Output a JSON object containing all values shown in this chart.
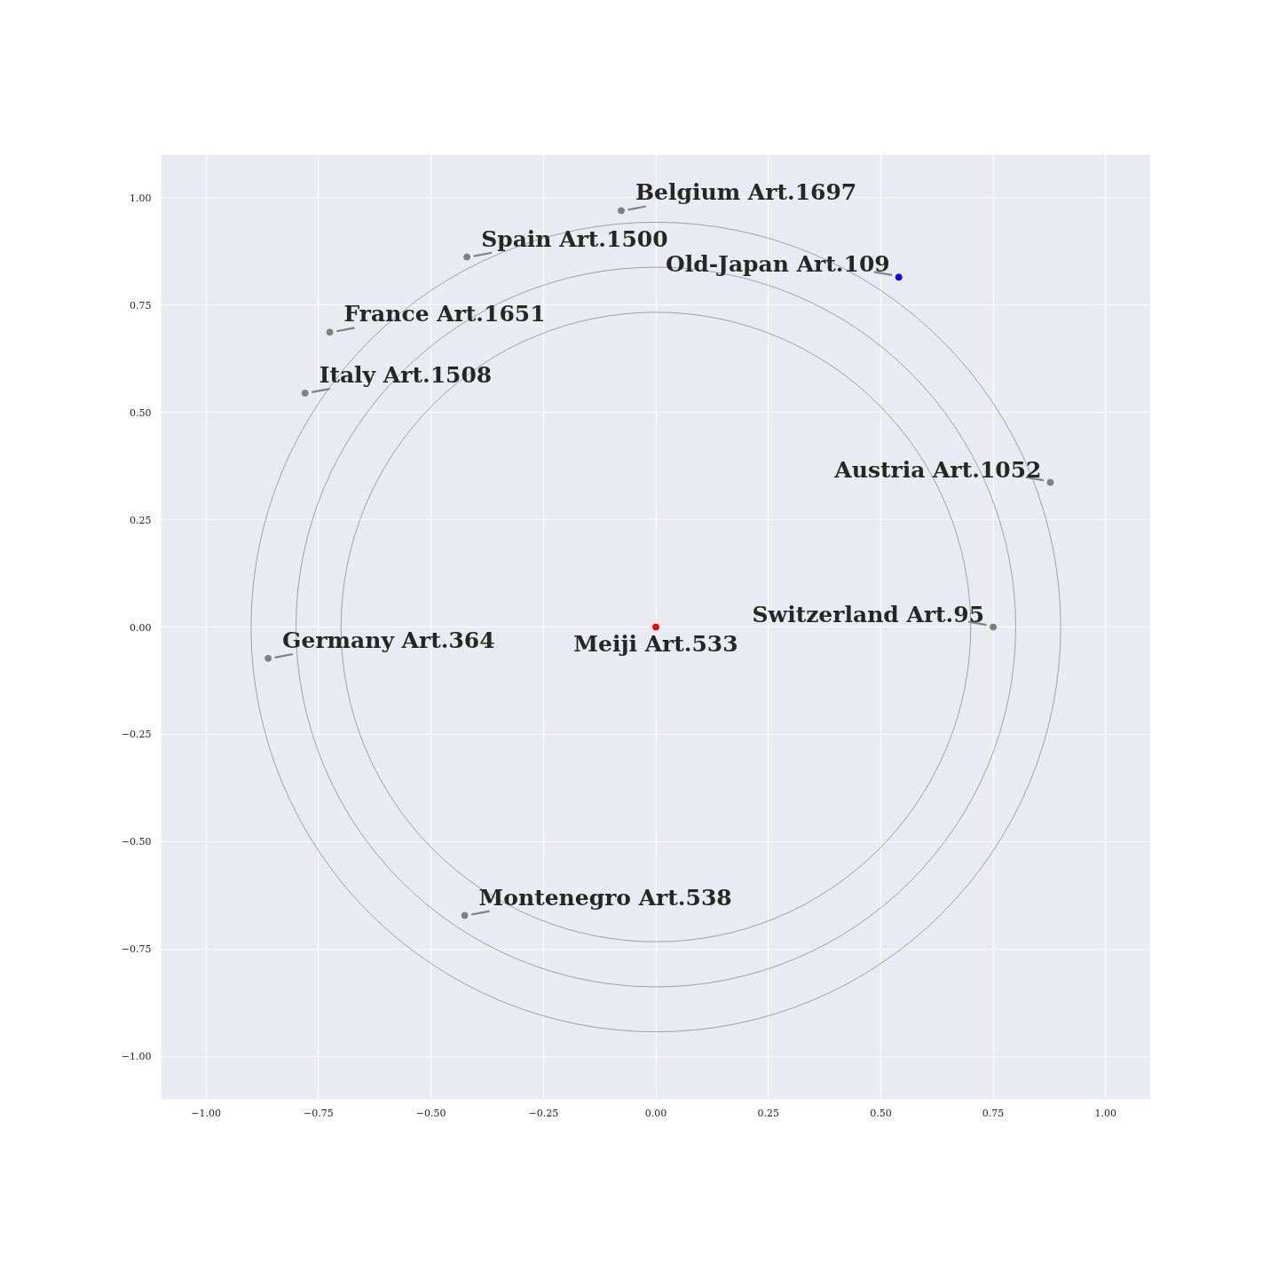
{
  "chart_data": {
    "type": "scatter",
    "xlim": [
      -1.1,
      1.1
    ],
    "ylim": [
      -1.1,
      1.1
    ],
    "xticks": [
      {
        "value": -1,
        "label": "−1.00"
      },
      {
        "value": -0.75,
        "label": "−0.75"
      },
      {
        "value": -0.5,
        "label": "−0.50"
      },
      {
        "value": -0.25,
        "label": "−0.25"
      },
      {
        "value": 0,
        "label": "0.00"
      },
      {
        "value": 0.25,
        "label": "0.25"
      },
      {
        "value": 0.5,
        "label": "0.50"
      },
      {
        "value": 0.75,
        "label": "0.75"
      },
      {
        "value": 1,
        "label": "1.00"
      }
    ],
    "yticks": [
      {
        "value": -1,
        "label": "−1.00"
      },
      {
        "value": -0.75,
        "label": "−0.75"
      },
      {
        "value": -0.5,
        "label": "−0.50"
      },
      {
        "value": -0.25,
        "label": "−0.25"
      },
      {
        "value": 0,
        "label": "0.00"
      },
      {
        "value": 0.25,
        "label": "0.25"
      },
      {
        "value": 0.5,
        "label": "0.50"
      },
      {
        "value": 0.75,
        "label": "0.75"
      },
      {
        "value": 1,
        "label": "1.00"
      }
    ],
    "grid": true,
    "marker": "circle",
    "series": [
      {
        "x": [
          -0.077,
          -0.42,
          0.54,
          -0.725,
          -0.78,
          0.877,
          0.75,
          -0.862,
          0,
          -0.425
        ],
        "values": [
          0.97,
          0.862,
          0.815,
          0.687,
          0.545,
          0.337,
          0,
          -0.073,
          0,
          -0.672
        ],
        "colors": [
          "#808080",
          "#808080",
          "#0000ff",
          "#808080",
          "#808080",
          "#808080",
          "#808080",
          "#808080",
          "#ff0000",
          "#808080"
        ]
      }
    ],
    "annotations": [
      {
        "text": "Belgium Art.1697",
        "x": -0.077,
        "y": 0.97
      },
      {
        "text": "Spain Art.1500",
        "x": -0.42,
        "y": 0.862
      },
      {
        "text": "Old-Japan Art.109",
        "x": 0.54,
        "y": 0.815
      },
      {
        "text": "France Art.1651",
        "x": -0.725,
        "y": 0.687
      },
      {
        "text": "Italy Art.1508",
        "x": -0.78,
        "y": 0.545
      },
      {
        "text": "Austria Art.1052",
        "x": 0.877,
        "y": 0.337
      },
      {
        "text": "Switzerland Art.95",
        "x": 0.75,
        "y": 0
      },
      {
        "text": "Germany Art.364",
        "x": -0.862,
        "y": -0.073
      },
      {
        "text": "Meiji Art.533",
        "x": 0,
        "y": 0
      },
      {
        "text": "Montenegro Art.538",
        "x": -0.425,
        "y": -0.672
      }
    ]
  }
}
